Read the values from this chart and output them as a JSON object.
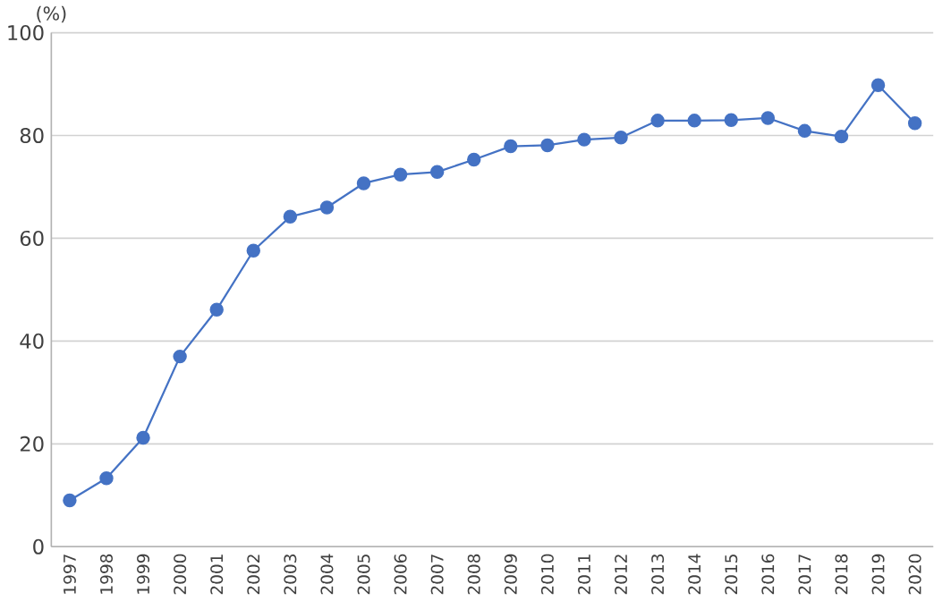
{
  "chart_data": {
    "type": "line",
    "ylabel": "(%)",
    "categories": [
      "1997",
      "1998",
      "1999",
      "2000",
      "2001",
      "2002",
      "2003",
      "2004",
      "2005",
      "2006",
      "2007",
      "2008",
      "2009",
      "2010",
      "2011",
      "2012",
      "2013",
      "2014",
      "2015",
      "2016",
      "2017",
      "2018",
      "2019",
      "2020"
    ],
    "series": [
      {
        "color": "#4472c4",
        "values": [
          9.0,
          13.3,
          21.2,
          37.0,
          46.1,
          57.6,
          64.2,
          66.0,
          70.7,
          72.4,
          72.9,
          75.3,
          77.9,
          78.1,
          79.2,
          79.6,
          82.9,
          82.9,
          83.0,
          83.4,
          80.9,
          79.8,
          89.8,
          82.4
        ]
      }
    ],
    "ylim": [
      0,
      100
    ],
    "yticks": [
      0,
      20,
      40,
      60,
      80,
      100
    ],
    "grid": "y",
    "marker": "circle",
    "line_style": "solid"
  }
}
